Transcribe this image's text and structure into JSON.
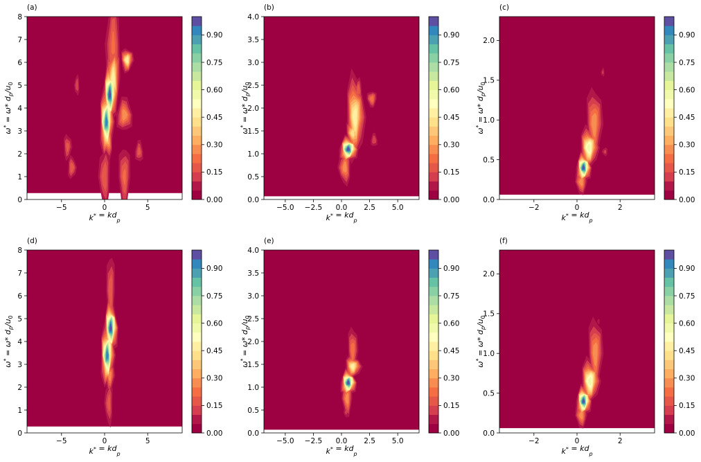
{
  "figure": {
    "panels": [
      {
        "label": "(a)",
        "xlabel": "k* = kd_p",
        "ylabel": "ω* = ω* d_p/u_0",
        "xlim": [
          -9,
          9
        ],
        "ylim": [
          0,
          8
        ],
        "xticks": [
          {
            "v": -5,
            "t": "−5"
          },
          {
            "v": 0,
            "t": "0"
          },
          {
            "v": 5,
            "t": "5"
          }
        ],
        "yticks": [
          {
            "v": 0,
            "t": "0"
          },
          {
            "v": 1,
            "t": "1"
          },
          {
            "v": 2,
            "t": "2"
          },
          {
            "v": 3,
            "t": "3"
          },
          {
            "v": 4,
            "t": "4"
          },
          {
            "v": 5,
            "t": "5"
          },
          {
            "v": 6,
            "t": "6"
          },
          {
            "v": 7,
            "t": "7"
          },
          {
            "v": 8,
            "t": "8"
          }
        ],
        "floor": 0.28,
        "blobs": [
          {
            "x": 0.6,
            "y": 4.6,
            "rx": 0.35,
            "ry": 0.55,
            "peak": 1.0
          },
          {
            "x": 0.2,
            "y": 3.4,
            "rx": 0.35,
            "ry": 0.6,
            "peak": 0.95
          },
          {
            "x": 2.6,
            "y": 6.1,
            "rx": 0.35,
            "ry": 0.25,
            "peak": 0.5
          },
          {
            "x": 1.0,
            "y": 5.3,
            "rx": 0.4,
            "ry": 0.7,
            "peak": 0.5
          },
          {
            "x": 0.4,
            "y": 2.6,
            "rx": 0.3,
            "ry": 0.4,
            "peak": 0.35
          },
          {
            "x": 1.0,
            "y": 6.8,
            "rx": 0.5,
            "ry": 1.2,
            "peak": 0.22
          },
          {
            "x": 2.3,
            "y": 3.7,
            "rx": 0.5,
            "ry": 0.4,
            "peak": 0.3
          },
          {
            "x": -3.8,
            "y": 1.4,
            "rx": 0.3,
            "ry": 0.3,
            "peak": 0.2
          },
          {
            "x": -4.3,
            "y": 2.3,
            "rx": 0.3,
            "ry": 0.35,
            "peak": 0.18
          },
          {
            "x": 2.3,
            "y": 1.0,
            "rx": 0.4,
            "ry": 0.8,
            "peak": 0.22
          },
          {
            "x": 0.0,
            "y": 1.0,
            "rx": 0.4,
            "ry": 0.8,
            "peak": 0.2
          },
          {
            "x": -3.2,
            "y": 5.0,
            "rx": 0.2,
            "ry": 0.3,
            "peak": 0.15
          },
          {
            "x": 4.0,
            "y": 2.1,
            "rx": 0.3,
            "ry": 0.3,
            "peak": 0.18
          }
        ]
      },
      {
        "label": "(b)",
        "xlabel": "k* = kd_p",
        "ylabel": "ω* = ω* d_p/u_0",
        "xlim": [
          -6.9,
          6.9
        ],
        "ylim": [
          0,
          4
        ],
        "xticks": [
          {
            "v": -5,
            "t": "−5.0"
          },
          {
            "v": -2.5,
            "t": "−2.5"
          },
          {
            "v": 0,
            "t": "0.0"
          },
          {
            "v": 2.5,
            "t": "2.5"
          },
          {
            "v": 5,
            "t": "5.0"
          }
        ],
        "yticks": [
          {
            "v": 0,
            "t": "0.0"
          },
          {
            "v": 0.5,
            "t": "0.5"
          },
          {
            "v": 1,
            "t": "1.0"
          },
          {
            "v": 1.5,
            "t": "1.5"
          },
          {
            "v": 2,
            "t": "2.0"
          },
          {
            "v": 2.5,
            "t": "2.5"
          },
          {
            "v": 3,
            "t": "3.0"
          },
          {
            "v": 3.5,
            "t": "3.5"
          },
          {
            "v": 4,
            "t": "4.0"
          }
        ],
        "floor": 0.07,
        "blobs": [
          {
            "x": 0.6,
            "y": 1.1,
            "rx": 0.35,
            "ry": 0.12,
            "peak": 1.0
          },
          {
            "x": 1.2,
            "y": 1.8,
            "rx": 0.4,
            "ry": 0.45,
            "peak": 0.5
          },
          {
            "x": 1.0,
            "y": 1.45,
            "rx": 0.3,
            "ry": 0.15,
            "peak": 0.45
          },
          {
            "x": 2.7,
            "y": 2.2,
            "rx": 0.25,
            "ry": 0.1,
            "peak": 0.25
          },
          {
            "x": 0.3,
            "y": 0.7,
            "rx": 0.3,
            "ry": 0.2,
            "peak": 0.3
          },
          {
            "x": 1.5,
            "y": 2.4,
            "rx": 0.2,
            "ry": 0.15,
            "peak": 0.2
          },
          {
            "x": 2.9,
            "y": 1.3,
            "rx": 0.2,
            "ry": 0.1,
            "peak": 0.15
          }
        ]
      },
      {
        "label": "(c)",
        "xlabel": "k* = kd_p",
        "ylabel": "ω* = ω* d_p/u_0",
        "xlim": [
          -3.6,
          3.6
        ],
        "ylim": [
          0,
          2.3
        ],
        "xticks": [
          {
            "v": -2,
            "t": "−2"
          },
          {
            "v": 0,
            "t": "0"
          },
          {
            "v": 2,
            "t": "2"
          }
        ],
        "yticks": [
          {
            "v": 0,
            "t": "0.0"
          },
          {
            "v": 0.5,
            "t": "0.5"
          },
          {
            "v": 1,
            "t": "1.0"
          },
          {
            "v": 1.5,
            "t": "1.5"
          },
          {
            "v": 2,
            "t": "2.0"
          }
        ],
        "floor": 0.06,
        "blobs": [
          {
            "x": 0.3,
            "y": 0.4,
            "rx": 0.15,
            "ry": 0.08,
            "peak": 1.0
          },
          {
            "x": 0.55,
            "y": 0.65,
            "rx": 0.2,
            "ry": 0.12,
            "peak": 0.6
          },
          {
            "x": 0.8,
            "y": 0.95,
            "rx": 0.2,
            "ry": 0.25,
            "peak": 0.3
          },
          {
            "x": 0.2,
            "y": 0.22,
            "rx": 0.15,
            "ry": 0.08,
            "peak": 0.3
          },
          {
            "x": 1.3,
            "y": 0.6,
            "rx": 0.1,
            "ry": 0.04,
            "peak": 0.12
          },
          {
            "x": 1.2,
            "y": 1.6,
            "rx": 0.06,
            "ry": 0.04,
            "peak": 0.12
          }
        ]
      },
      {
        "label": "(d)",
        "xlabel": "k* = kd_p",
        "ylabel": "ω* = ω* d_p/u_0",
        "xlim": [
          -9,
          9
        ],
        "ylim": [
          0,
          8
        ],
        "xticks": [
          {
            "v": -5,
            "t": "−5"
          },
          {
            "v": 0,
            "t": "0"
          },
          {
            "v": 5,
            "t": "5"
          }
        ],
        "yticks": [
          {
            "v": 0,
            "t": "0"
          },
          {
            "v": 1,
            "t": "1"
          },
          {
            "v": 2,
            "t": "2"
          },
          {
            "v": 3,
            "t": "3"
          },
          {
            "v": 4,
            "t": "4"
          },
          {
            "v": 5,
            "t": "5"
          },
          {
            "v": 6,
            "t": "6"
          },
          {
            "v": 7,
            "t": "7"
          },
          {
            "v": 8,
            "t": "8"
          }
        ],
        "floor": 0.28,
        "blobs": [
          {
            "x": 0.7,
            "y": 4.6,
            "rx": 0.35,
            "ry": 0.5,
            "peak": 1.0
          },
          {
            "x": 0.3,
            "y": 3.4,
            "rx": 0.35,
            "ry": 0.55,
            "peak": 0.95
          },
          {
            "x": 0.6,
            "y": 2.5,
            "rx": 0.3,
            "ry": 0.35,
            "peak": 0.3
          },
          {
            "x": 0.7,
            "y": 6.2,
            "rx": 0.3,
            "ry": 1.0,
            "peak": 0.2
          },
          {
            "x": 0.5,
            "y": 1.3,
            "rx": 0.3,
            "ry": 0.6,
            "peak": 0.18
          }
        ]
      },
      {
        "label": "(e)",
        "xlabel": "k* = kd_p",
        "ylabel": "ω* = ω* d_p/u_0",
        "xlim": [
          -6.9,
          6.9
        ],
        "ylim": [
          0,
          4
        ],
        "xticks": [
          {
            "v": -5,
            "t": "−5.0"
          },
          {
            "v": -2.5,
            "t": "−2.5"
          },
          {
            "v": 0,
            "t": "0.0"
          },
          {
            "v": 2.5,
            "t": "2.5"
          },
          {
            "v": 5,
            "t": "5.0"
          }
        ],
        "yticks": [
          {
            "v": 0,
            "t": "0.0"
          },
          {
            "v": 0.5,
            "t": "0.5"
          },
          {
            "v": 1,
            "t": "1.0"
          },
          {
            "v": 1.5,
            "t": "1.5"
          },
          {
            "v": 2,
            "t": "2.0"
          },
          {
            "v": 2.5,
            "t": "2.5"
          },
          {
            "v": 3,
            "t": "3.0"
          },
          {
            "v": 3.5,
            "t": "3.5"
          },
          {
            "v": 4,
            "t": "4.0"
          }
        ],
        "floor": 0.07,
        "blobs": [
          {
            "x": 0.6,
            "y": 1.1,
            "rx": 0.3,
            "ry": 0.12,
            "peak": 1.0
          },
          {
            "x": 1.0,
            "y": 1.45,
            "rx": 0.35,
            "ry": 0.12,
            "peak": 0.5
          },
          {
            "x": 1.0,
            "y": 1.8,
            "rx": 0.25,
            "ry": 0.3,
            "peak": 0.25
          },
          {
            "x": 0.5,
            "y": 0.75,
            "rx": 0.25,
            "ry": 0.2,
            "peak": 0.3
          },
          {
            "x": 0.4,
            "y": 0.45,
            "rx": 0.15,
            "ry": 0.08,
            "peak": 0.12
          }
        ]
      },
      {
        "label": "(f)",
        "xlabel": "k* = kd_p",
        "ylabel": "ω* = ω* d_p/u_0",
        "xlim": [
          -3.6,
          3.6
        ],
        "ylim": [
          0,
          2.3
        ],
        "xticks": [
          {
            "v": -2,
            "t": "−2"
          },
          {
            "v": 0,
            "t": "0"
          },
          {
            "v": 2,
            "t": "2"
          }
        ],
        "yticks": [
          {
            "v": 0,
            "t": "0.0"
          },
          {
            "v": 0.5,
            "t": "0.5"
          },
          {
            "v": 1,
            "t": "1.0"
          },
          {
            "v": 1.5,
            "t": "1.5"
          },
          {
            "v": 2,
            "t": "2.0"
          }
        ],
        "floor": 0.06,
        "blobs": [
          {
            "x": 0.3,
            "y": 0.4,
            "rx": 0.15,
            "ry": 0.08,
            "peak": 1.0
          },
          {
            "x": 0.6,
            "y": 0.65,
            "rx": 0.2,
            "ry": 0.13,
            "peak": 0.6
          },
          {
            "x": 0.85,
            "y": 1.0,
            "rx": 0.18,
            "ry": 0.25,
            "peak": 0.3
          },
          {
            "x": 0.2,
            "y": 0.22,
            "rx": 0.15,
            "ry": 0.08,
            "peak": 0.3
          },
          {
            "x": 1.0,
            "y": 1.4,
            "rx": 0.05,
            "ry": 0.03,
            "peak": 0.1
          }
        ]
      }
    ],
    "colorbar": {
      "ticks": [
        "0.00",
        "0.15",
        "0.30",
        "0.45",
        "0.60",
        "0.75",
        "0.90"
      ],
      "tick_values": [
        0,
        0.15,
        0.3,
        0.45,
        0.6,
        0.75,
        0.9
      ],
      "range": [
        0,
        1
      ],
      "levels": 20,
      "colors": [
        "#9e0142",
        "#b2174a",
        "#d53e4f",
        "#e55749",
        "#f46d43",
        "#f88d52",
        "#fdae61",
        "#fdc779",
        "#fee08b",
        "#feefa3",
        "#ffffbf",
        "#f1f9aa",
        "#e6f598",
        "#c7e89e",
        "#abdda4",
        "#89d0a4",
        "#66c2a5",
        "#4ba0b1",
        "#3288bd",
        "#5e4fa2"
      ]
    }
  },
  "chart_data": [
    {
      "type": "heatmap",
      "title": "(a)",
      "xlabel": "k* = kd_p",
      "ylabel": "ω* = ω* d_p/u_0",
      "xlim": [
        -9,
        9
      ],
      "ylim": [
        0,
        8
      ],
      "colorbar_range": [
        0,
        1
      ],
      "peaks": [
        {
          "x": 0.6,
          "y": 4.6,
          "value": 1.0
        },
        {
          "x": 0.2,
          "y": 3.4,
          "value": 0.95
        },
        {
          "x": 2.6,
          "y": 6.1,
          "value": 0.5
        }
      ]
    },
    {
      "type": "heatmap",
      "title": "(b)",
      "xlabel": "k* = kd_p",
      "ylabel": "ω* = ω* d_p/u_0",
      "xlim": [
        -6.9,
        6.9
      ],
      "ylim": [
        0,
        4
      ],
      "colorbar_range": [
        0,
        1
      ],
      "peaks": [
        {
          "x": 0.6,
          "y": 1.1,
          "value": 1.0
        },
        {
          "x": 1.2,
          "y": 1.8,
          "value": 0.5
        }
      ]
    },
    {
      "type": "heatmap",
      "title": "(c)",
      "xlabel": "k* = kd_p",
      "ylabel": "ω* = ω* d_p/u_0",
      "xlim": [
        -3.6,
        3.6
      ],
      "ylim": [
        0,
        2.3
      ],
      "colorbar_range": [
        0,
        1
      ],
      "peaks": [
        {
          "x": 0.3,
          "y": 0.4,
          "value": 1.0
        },
        {
          "x": 0.55,
          "y": 0.65,
          "value": 0.6
        }
      ]
    },
    {
      "type": "heatmap",
      "title": "(d)",
      "xlabel": "k* = kd_p",
      "ylabel": "ω* = ω* d_p/u_0",
      "xlim": [
        -9,
        9
      ],
      "ylim": [
        0,
        8
      ],
      "colorbar_range": [
        0,
        1
      ],
      "peaks": [
        {
          "x": 0.7,
          "y": 4.6,
          "value": 1.0
        },
        {
          "x": 0.3,
          "y": 3.4,
          "value": 0.95
        }
      ]
    },
    {
      "type": "heatmap",
      "title": "(e)",
      "xlabel": "k* = kd_p",
      "ylabel": "ω* = ω* d_p/u_0",
      "xlim": [
        -6.9,
        6.9
      ],
      "ylim": [
        0,
        4
      ],
      "colorbar_range": [
        0,
        1
      ],
      "peaks": [
        {
          "x": 0.6,
          "y": 1.1,
          "value": 1.0
        },
        {
          "x": 1.0,
          "y": 1.45,
          "value": 0.5
        }
      ]
    },
    {
      "type": "heatmap",
      "title": "(f)",
      "xlabel": "k* = kd_p",
      "ylabel": "ω* = ω* d_p/u_0",
      "xlim": [
        -3.6,
        3.6
      ],
      "ylim": [
        0,
        2.3
      ],
      "colorbar_range": [
        0,
        1
      ],
      "peaks": [
        {
          "x": 0.3,
          "y": 0.4,
          "value": 1.0
        },
        {
          "x": 0.6,
          "y": 0.65,
          "value": 0.6
        }
      ]
    }
  ]
}
